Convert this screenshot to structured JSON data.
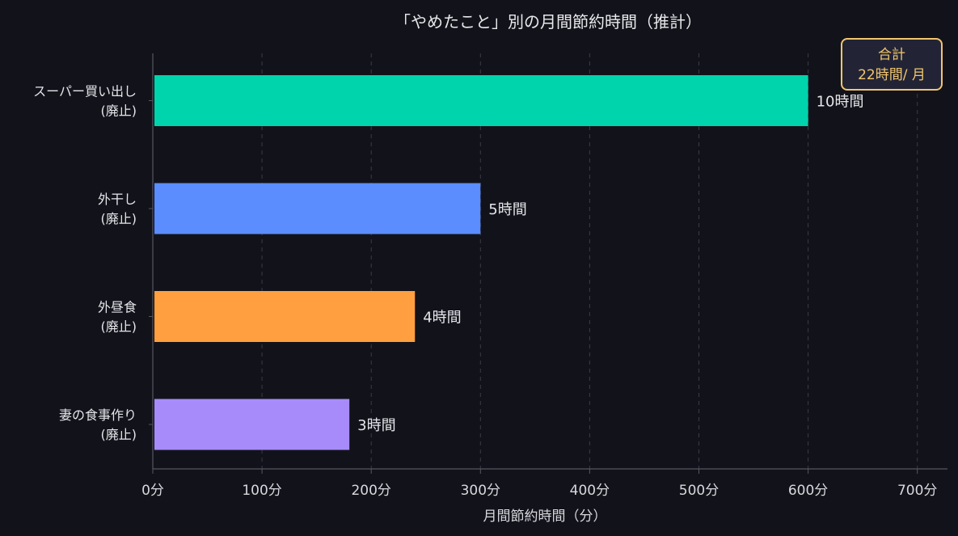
{
  "chart_data": {
    "type": "bar",
    "orientation": "horizontal",
    "title": "「やめたこと」別の月間節約時間（推計）",
    "xlabel": "月間節約時間（分）",
    "ylabel": "",
    "xlim": [
      0,
      700
    ],
    "x_ticks": [
      0,
      100,
      200,
      300,
      400,
      500,
      600,
      700
    ],
    "x_tick_labels": [
      "0分",
      "100分",
      "200分",
      "300分",
      "400分",
      "500分",
      "600分",
      "700分"
    ],
    "grid": "vertical-dashed",
    "categories": [
      {
        "lines": [
          "スーパー買い出し",
          "(廃止)"
        ]
      },
      {
        "lines": [
          "外干し",
          "(廃止)"
        ]
      },
      {
        "lines": [
          "外昼食",
          "(廃止)"
        ]
      },
      {
        "lines": [
          "妻の食事作り",
          "(廃止)"
        ]
      }
    ],
    "values": [
      600,
      300,
      240,
      180
    ],
    "data_labels": [
      "10時間",
      "5時間",
      "4時間",
      "3時間"
    ],
    "colors": [
      "#00d4ad",
      "#5b8dff",
      "#ff9f40",
      "#a78bfa"
    ],
    "annotation": {
      "lines": [
        "合計",
        "22時間/ 月"
      ],
      "placement": "top-right",
      "border_color": "#f2c66d",
      "text_color": "#f2c66d",
      "background": "#222436"
    },
    "background_color": "#12131a",
    "grid_color": "#3a3b46",
    "axis_color": "#555662"
  }
}
